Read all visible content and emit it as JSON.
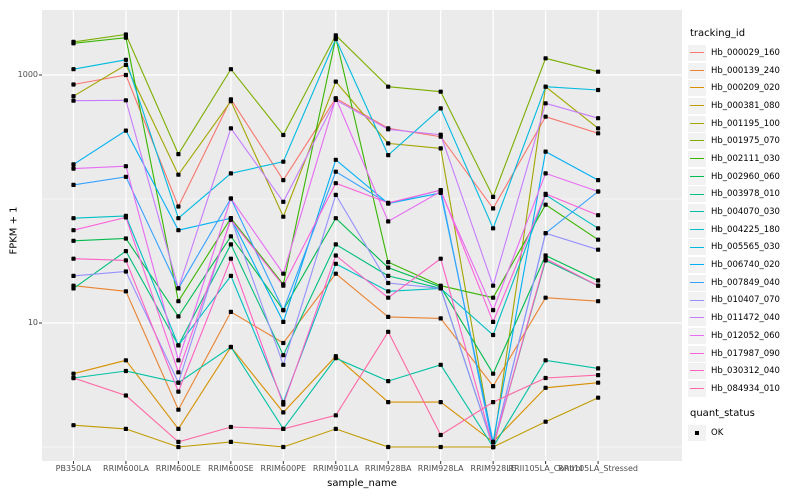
{
  "chart_data": {
    "type": "line",
    "title": "",
    "xlabel": "sample_name",
    "ylabel": "FPKM + 1",
    "y_scale": "log10",
    "y_ticks": [
      1000,
      10
    ],
    "y_tick_labels": [
      "1000",
      "10"
    ],
    "y_minor_ticks": [
      100,
      1
    ],
    "ylim": [
      1,
      3300
    ],
    "grid": true,
    "panel_bg": "#ebebeb",
    "grid_color": "#ffffff",
    "tick_label_color": "#4d4d4d",
    "point_color": "#000000",
    "legend_position": "right",
    "legend_title": "tracking_id",
    "quant_legend": {
      "title": "quant_status",
      "items": [
        "OK"
      ]
    },
    "x_categories": [
      "PB350LA",
      "RRIM600LA",
      "RRIM600LE",
      "RRIM600SE",
      "RRIM600PE",
      "RRIM901LA",
      "RRIM928BA",
      "RRIM928LA",
      "RRIM928LE",
      "RRII105LA_Control",
      "RRII105LA_Stressed"
    ],
    "series": [
      {
        "name": "Hb_000029_160",
        "color": "#F8766D",
        "values": [
          839,
          1000,
          87,
          637,
          142,
          649,
          372,
          318,
          84,
          461,
          339
        ]
      },
      {
        "name": "Hb_000139_240",
        "color": "#EA8331",
        "values": [
          20,
          18,
          2,
          12.3,
          6.9,
          25,
          11.2,
          10.9,
          3.1,
          16,
          15
        ]
      },
      {
        "name": "Hb_000209_020",
        "color": "#D89000",
        "values": [
          3.9,
          5,
          1.4,
          6.4,
          1.9,
          5.4,
          2.3,
          2.3,
          1.1,
          3,
          3.3
        ]
      },
      {
        "name": "Hb_000381_080",
        "color": "#C09B00",
        "values": [
          1.5,
          1.4,
          1,
          1.1,
          1,
          1.4,
          1,
          1,
          1,
          1.6,
          2.5
        ]
      },
      {
        "name": "Hb_001195_100",
        "color": "#A3A500",
        "values": [
          674,
          1207,
          157,
          615,
          72,
          884,
          281,
          256,
          1,
          805,
          372
        ]
      },
      {
        "name": "Hb_001975_070",
        "color": "#7CAE00",
        "values": [
          1849,
          2120,
          230,
          1113,
          328,
          2090,
          805,
          733,
          104,
          1364,
          1064
        ]
      },
      {
        "name": "Hb_002111_030",
        "color": "#39B600",
        "values": [
          1800,
          2000,
          15,
          70,
          20.5,
          1990,
          31,
          20,
          16,
          90,
          47
        ]
      },
      {
        "name": "Hb_002960_060",
        "color": "#00BB4E",
        "values": [
          46,
          48,
          11.3,
          50,
          12.7,
          70,
          28,
          19.5,
          3.9,
          35,
          22
        ]
      },
      {
        "name": "Hb_003978_010",
        "color": "#00BF7D",
        "values": [
          19,
          38,
          6.6,
          43,
          5.5,
          43,
          24,
          19,
          1,
          32,
          20
        ]
      },
      {
        "name": "Hb_004070_030",
        "color": "#00C1A3",
        "values": [
          3.6,
          4.1,
          3.3,
          6.4,
          1.4,
          5.2,
          3.4,
          4.6,
          1,
          5,
          4.3
        ]
      },
      {
        "name": "Hb_004225_180",
        "color": "#00BFC4",
        "values": [
          70,
          73,
          6.6,
          24,
          2.3,
          30,
          18,
          19,
          8,
          108,
          58
        ]
      },
      {
        "name": "Hb_005565_030",
        "color": "#00BAE0",
        "values": [
          1113,
          1325,
          70,
          161,
          200,
          1950,
          226,
          538,
          58,
          805,
          757
        ]
      },
      {
        "name": "Hb_006740_020",
        "color": "#00B0F6",
        "values": [
          190,
          356,
          56,
          70,
          10.2,
          207,
          92,
          112,
          1.1,
          241,
          142
        ]
      },
      {
        "name": "Hb_007849_040",
        "color": "#35A2FF",
        "values": [
          130,
          151,
          19,
          101,
          12.7,
          166,
          92,
          118,
          1,
          53,
          115
        ]
      },
      {
        "name": "Hb_010407_070",
        "color": "#9590FF",
        "values": [
          24,
          26,
          3.3,
          70,
          4.6,
          108,
          21,
          19,
          1,
          53,
          39
        ]
      },
      {
        "name": "Hb_011472_040",
        "color": "#C77CFF",
        "values": [
          620,
          625,
          19,
          372,
          95,
          630,
          365,
          330,
          20,
          591,
          448
        ]
      },
      {
        "name": "Hb_012052_060",
        "color": "#E76BF3",
        "values": [
          176,
          184,
          5,
          101,
          25,
          649,
          66,
          115,
          12.7,
          161,
          115
        ]
      },
      {
        "name": "Hb_017987_090",
        "color": "#FA62DB",
        "values": [
          56,
          71,
          4,
          68,
          20,
          134,
          93,
          118,
          10.2,
          110,
          74
        ]
      },
      {
        "name": "Hb_030312_040",
        "color": "#FF61C3",
        "values": [
          33,
          32,
          2.8,
          33,
          2.2,
          35,
          16,
          33,
          1,
          33,
          20
        ]
      },
      {
        "name": "Hb_084934_010",
        "color": "#FF67A4",
        "values": [
          3.6,
          2.6,
          1.1,
          1.45,
          1.4,
          1.8,
          8.5,
          1.25,
          2.3,
          3.6,
          3.8
        ]
      }
    ]
  }
}
